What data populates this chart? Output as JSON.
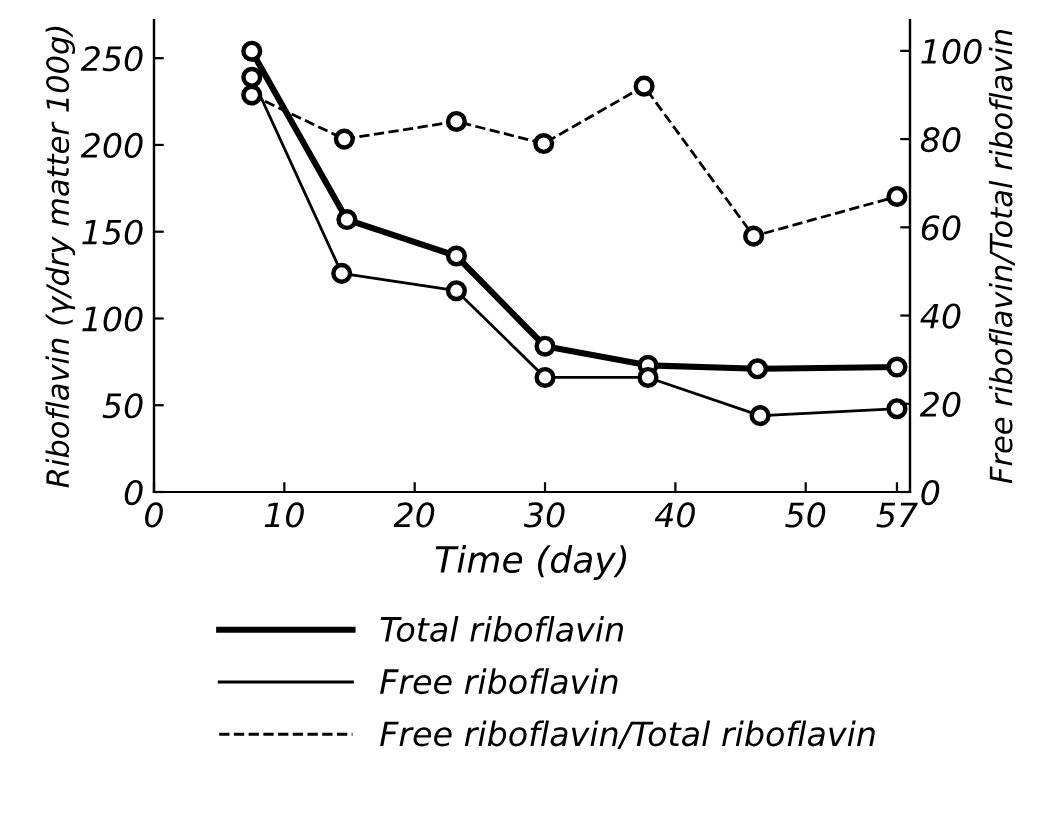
{
  "chart_data": {
    "type": "line",
    "xlabel": "Time (day)",
    "ylabel": "Riboflavin (γ/dry matter 100g)",
    "y2label": "Free riboflavin/Total riboflavin",
    "xlim": [
      0,
      58
    ],
    "xticks": [
      0,
      10,
      20,
      30,
      40,
      50,
      57
    ],
    "ylim": [
      0,
      272
    ],
    "yticks": [
      0,
      50,
      100,
      150,
      200,
      250
    ],
    "y2lim": [
      0,
      107
    ],
    "y2ticks": [
      0,
      20,
      40,
      60,
      80,
      100
    ],
    "marker": "circle",
    "grid": false,
    "legend": "bottom",
    "series": [
      {
        "name": "Total riboflavin",
        "color": "#000000",
        "line_style": "solid",
        "x": [
          7.5,
          14.8,
          23.2,
          30,
          37.9,
          46.3,
          57
        ],
        "values": [
          254,
          157,
          136,
          84,
          73,
          71,
          72
        ]
      },
      {
        "name": "Free riboflavin",
        "color": "#000000",
        "line_style": "solid",
        "x": [
          7.5,
          14.4,
          23.2,
          30,
          37.9,
          46.5,
          57
        ],
        "values": [
          239,
          126,
          116,
          66,
          66,
          44,
          48
        ]
      },
      {
        "name": "Free riboflavin/Total riboflavin",
        "color": "#000000",
        "line_style": "dashed",
        "axis": "y2",
        "x": [
          7.5,
          14.6,
          23.2,
          29.9,
          37.6,
          46,
          57
        ],
        "values": [
          90,
          80,
          84,
          79,
          92,
          58,
          67
        ]
      }
    ]
  }
}
